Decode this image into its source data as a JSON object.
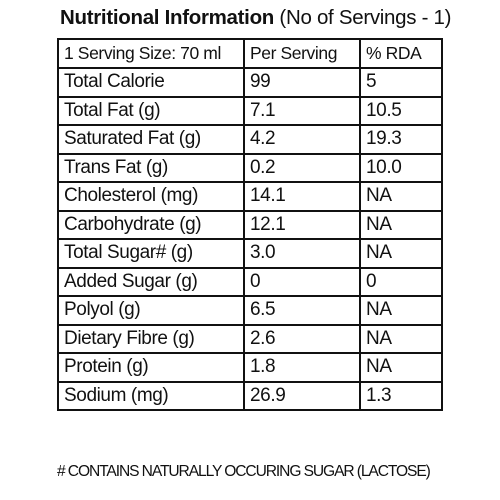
{
  "title": {
    "bold_part": "Nutritional Information",
    "regular_part": " (No of Servings - 1)"
  },
  "table": {
    "header": [
      "1 Serving Size: 70 ml",
      "Per Serving",
      "% RDA"
    ],
    "rows": [
      [
        "Total Calorie",
        "99",
        "5"
      ],
      [
        "Total Fat (g)",
        "7.1",
        "10.5"
      ],
      [
        "Saturated Fat (g)",
        "4.2",
        "19.3"
      ],
      [
        "Trans Fat (g)",
        "0.2",
        "10.0"
      ],
      [
        "Cholesterol (mg)",
        "14.1",
        "NA"
      ],
      [
        "Carbohydrate (g)",
        "12.1",
        "NA"
      ],
      [
        "Total Sugar# (g)",
        "3.0",
        "NA"
      ],
      [
        "Added Sugar (g)",
        "0",
        "0"
      ],
      [
        "Polyol (g)",
        "6.5",
        "NA"
      ],
      [
        "Dietary Fibre (g)",
        "2.6",
        "NA"
      ],
      [
        "Protein (g)",
        "1.8",
        "NA"
      ],
      [
        "Sodium (mg)",
        "26.9",
        "1.3"
      ]
    ]
  },
  "footnote": "# CONTAINS NATURALLY OCCURING SUGAR (LACTOSE)"
}
